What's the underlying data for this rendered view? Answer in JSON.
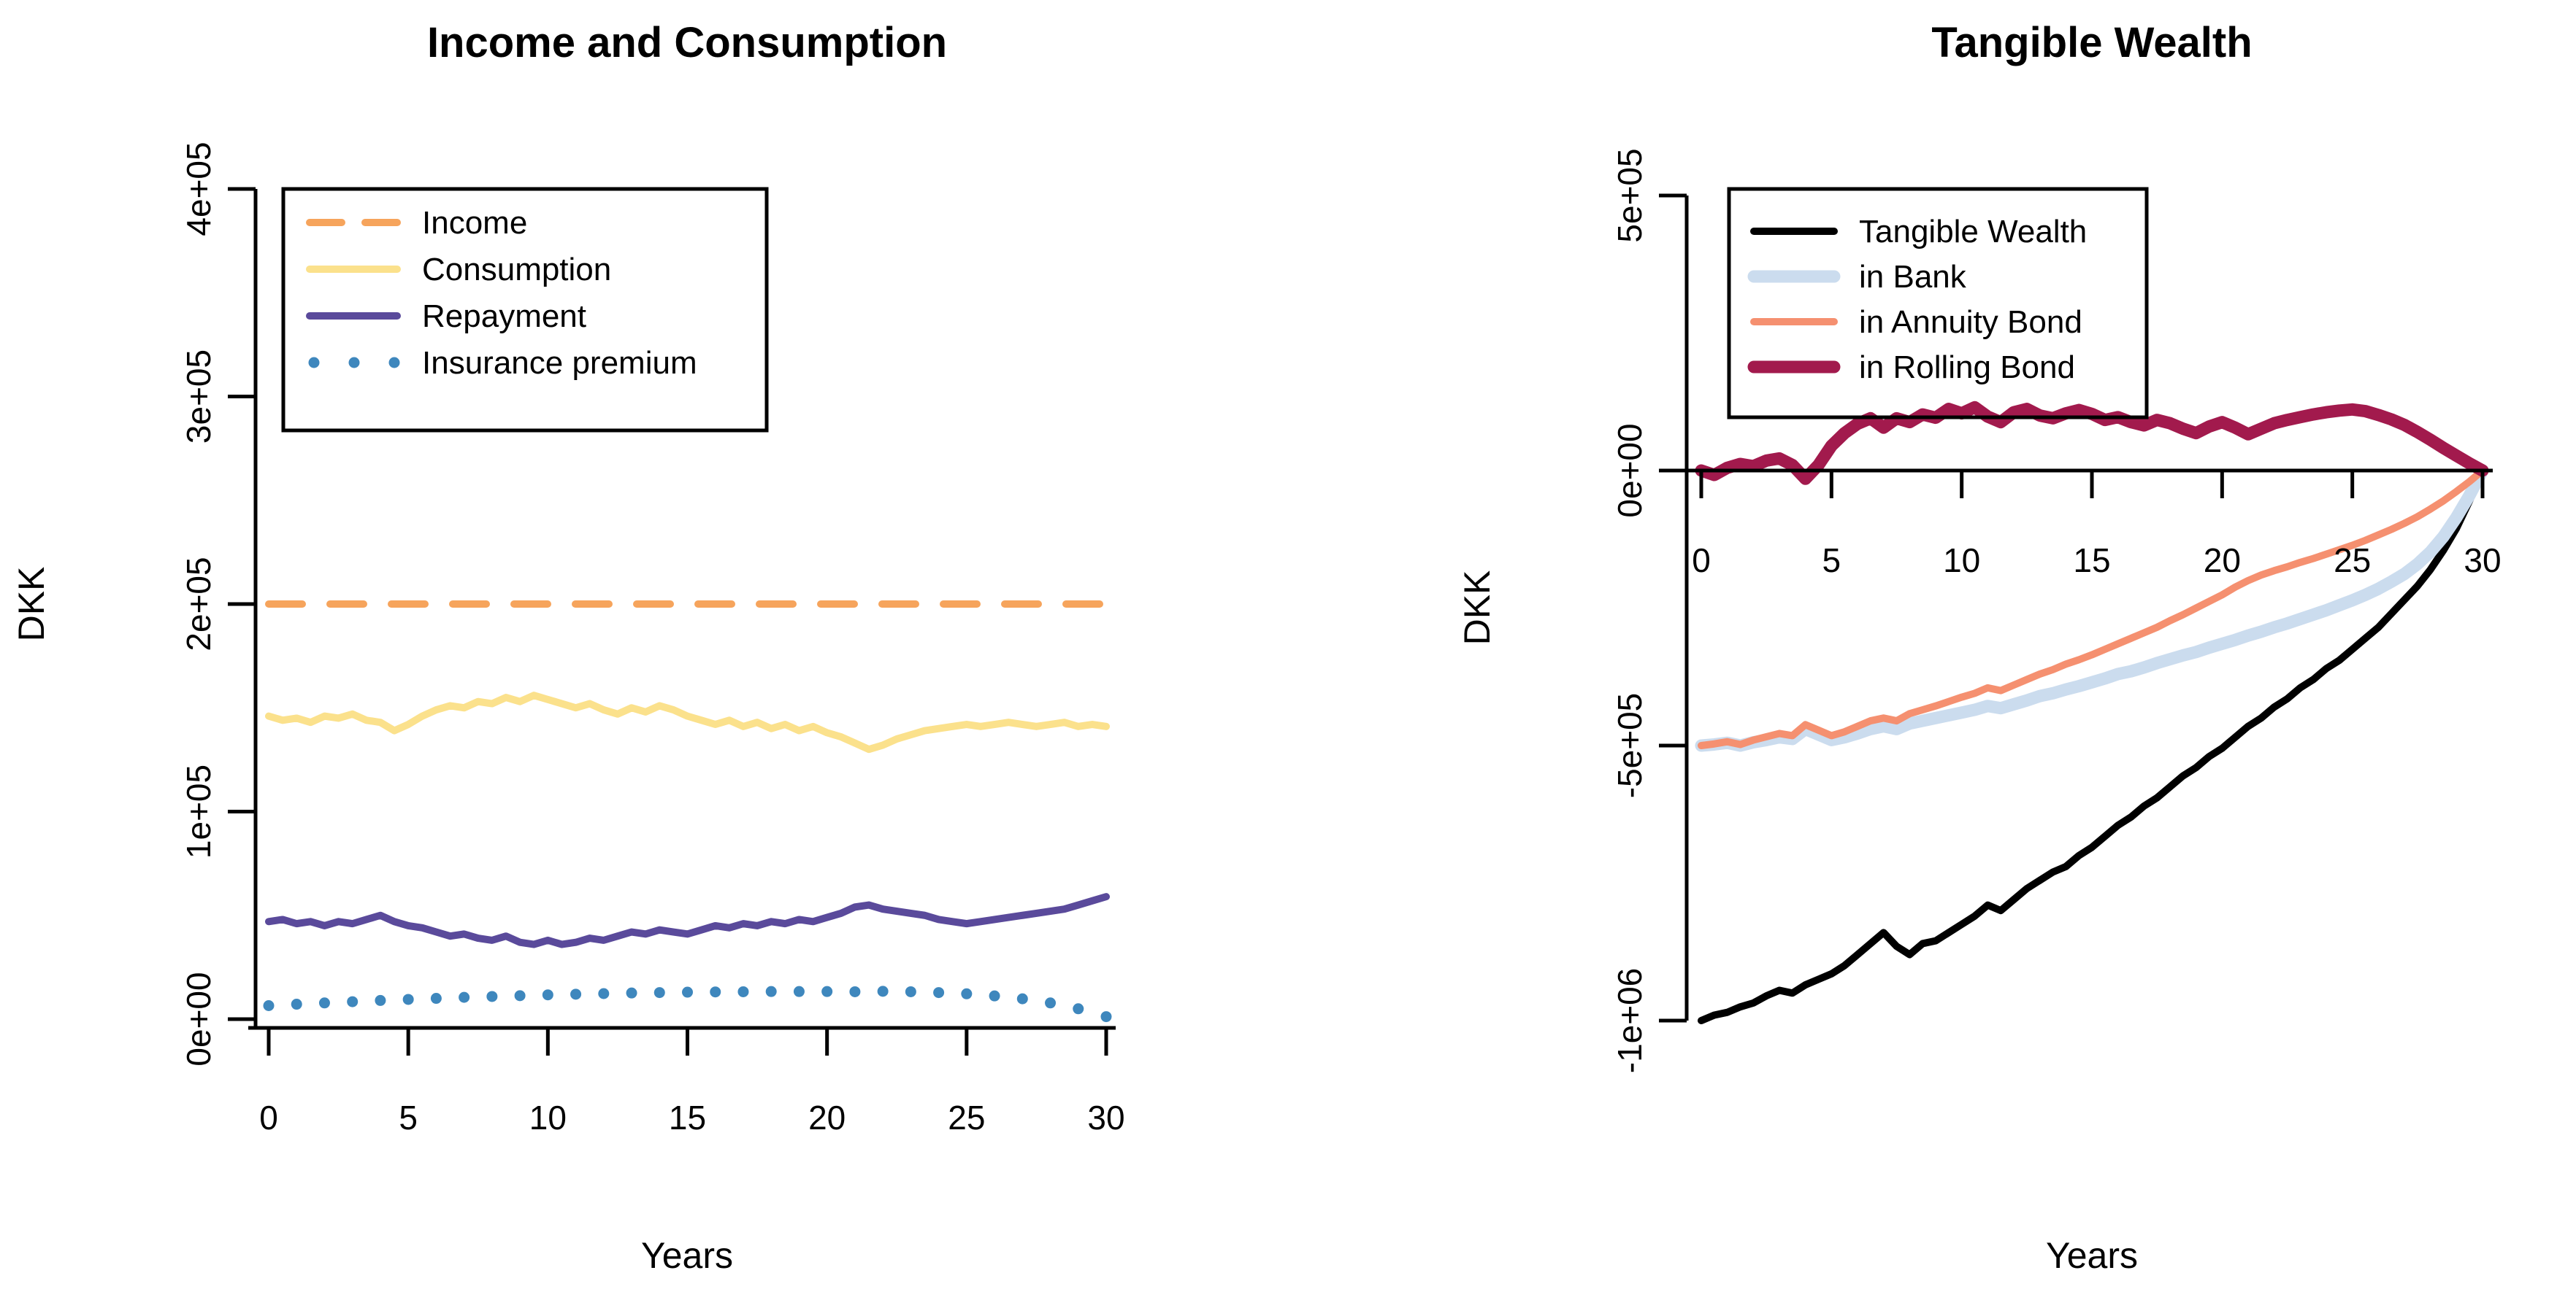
{
  "figure": {
    "background": "#FFFFFF",
    "text_color": "#000000"
  },
  "chart_data": [
    {
      "type": "line",
      "title": "Income and Consumption",
      "xlabel": "Years",
      "ylabel": "DKK",
      "xlim": [
        0,
        30
      ],
      "ylim": [
        0,
        400000
      ],
      "grid": false,
      "x_ticks": [
        0,
        5,
        10,
        15,
        20,
        25,
        30
      ],
      "y_ticks": {
        "values": [
          0,
          100000,
          200000,
          300000,
          400000
        ],
        "labels": [
          "0e+00",
          "1e+05",
          "2e+05",
          "3e+05",
          "4e+05"
        ]
      },
      "legend": {
        "position": "topleft",
        "entries": [
          "Income",
          "Consumption",
          "Repayment",
          "Insurance premium"
        ]
      },
      "series": [
        {
          "name": "Income",
          "color": "#F6A45C",
          "style": "dashed",
          "width": 10,
          "x_start": 0,
          "x_step": 30,
          "values": [
            200000,
            200000
          ]
        },
        {
          "name": "Consumption",
          "color": "#FBE18C",
          "style": "solid",
          "width": 10,
          "x_start": 0,
          "x_step": 0.5,
          "values": [
            146000,
            144000,
            145000,
            143000,
            146000,
            145000,
            147000,
            144000,
            143000,
            139000,
            142000,
            146000,
            149000,
            151000,
            150000,
            153000,
            152000,
            155000,
            153000,
            156000,
            154000,
            152000,
            150000,
            152000,
            149000,
            147000,
            150000,
            148000,
            151000,
            149000,
            146000,
            144000,
            142000,
            144000,
            141000,
            143000,
            140000,
            142000,
            139000,
            141000,
            138000,
            136000,
            133000,
            130000,
            132000,
            135000,
            137000,
            139000,
            140000,
            141000,
            142000,
            141000,
            142000,
            143000,
            142000,
            141000,
            142000,
            143000,
            141000,
            142000,
            141000
          ]
        },
        {
          "name": "Repayment",
          "color": "#5A4A9B",
          "style": "solid",
          "width": 10,
          "x_start": 0,
          "x_step": 0.5,
          "values": [
            47000,
            48000,
            46000,
            47000,
            45000,
            47000,
            46000,
            48000,
            50000,
            47000,
            45000,
            44000,
            42000,
            40000,
            41000,
            39000,
            38000,
            40000,
            37000,
            36000,
            38000,
            36000,
            37000,
            39000,
            38000,
            40000,
            42000,
            41000,
            43000,
            42000,
            41000,
            43000,
            45000,
            44000,
            46000,
            45000,
            47000,
            46000,
            48000,
            47000,
            49000,
            51000,
            54000,
            55000,
            53000,
            52000,
            51000,
            50000,
            48000,
            47000,
            46000,
            47000,
            48000,
            49000,
            50000,
            51000,
            52000,
            53000,
            55000,
            57000,
            59000
          ]
        },
        {
          "name": "Insurance premium",
          "color": "#3E87BD",
          "style": "dotted",
          "width": 10,
          "x_start": 0,
          "x_step": 1,
          "values": [
            6500,
            7200,
            7800,
            8400,
            9000,
            9500,
            10000,
            10500,
            10900,
            11300,
            11700,
            12000,
            12300,
            12600,
            12800,
            13000,
            13100,
            13200,
            13300,
            13300,
            13300,
            13200,
            13400,
            13200,
            12800,
            12200,
            11200,
            9800,
            7800,
            5000,
            1200
          ]
        }
      ]
    },
    {
      "type": "line",
      "title": "Tangible Wealth",
      "xlabel": "Years",
      "ylabel": "DKK",
      "xlim": [
        0,
        30
      ],
      "ylim": [
        -1000000,
        500000
      ],
      "grid": false,
      "x_axis_at_y": 0,
      "x_ticks": [
        0,
        5,
        10,
        15,
        20,
        25,
        30
      ],
      "y_ticks": {
        "values": [
          -1000000,
          -500000,
          0,
          500000
        ],
        "labels": [
          "-1e+06",
          "-5e+05",
          "0e+00",
          "5e+05"
        ]
      },
      "legend": {
        "position": "topleft",
        "entries": [
          "Tangible Wealth",
          "in Bank",
          "in Annuity Bond",
          "in Rolling Bond"
        ]
      },
      "series": [
        {
          "name": "Tangible Wealth",
          "color": "#000000",
          "style": "solid",
          "width": 10,
          "x_start": 0,
          "x_step": 0.5,
          "values": [
            -1000000,
            -990000,
            -985000,
            -975000,
            -968000,
            -955000,
            -945000,
            -950000,
            -935000,
            -925000,
            -915000,
            -900000,
            -880000,
            -860000,
            -840000,
            -865000,
            -880000,
            -860000,
            -855000,
            -840000,
            -825000,
            -810000,
            -790000,
            -800000,
            -780000,
            -760000,
            -745000,
            -730000,
            -720000,
            -700000,
            -685000,
            -665000,
            -645000,
            -630000,
            -610000,
            -595000,
            -575000,
            -555000,
            -540000,
            -520000,
            -505000,
            -485000,
            -465000,
            -450000,
            -430000,
            -415000,
            -395000,
            -380000,
            -360000,
            -345000,
            -325000,
            -305000,
            -285000,
            -260000,
            -235000,
            -210000,
            -180000,
            -145000,
            -105000,
            -55000,
            0
          ]
        },
        {
          "name": "in Bank",
          "color": "#CBDCEE",
          "style": "solid",
          "width": 17,
          "x_start": 0,
          "x_step": 0.5,
          "values": [
            -500000,
            -498000,
            -495000,
            -500000,
            -494000,
            -490000,
            -485000,
            -488000,
            -470000,
            -480000,
            -490000,
            -485000,
            -478000,
            -470000,
            -465000,
            -470000,
            -460000,
            -455000,
            -450000,
            -445000,
            -440000,
            -435000,
            -428000,
            -432000,
            -425000,
            -418000,
            -410000,
            -405000,
            -398000,
            -392000,
            -385000,
            -378000,
            -370000,
            -365000,
            -358000,
            -350000,
            -343000,
            -336000,
            -330000,
            -322000,
            -315000,
            -308000,
            -300000,
            -293000,
            -285000,
            -278000,
            -270000,
            -262000,
            -254000,
            -245000,
            -236000,
            -226000,
            -215000,
            -202000,
            -188000,
            -170000,
            -148000,
            -120000,
            -85000,
            -45000,
            0
          ]
        },
        {
          "name": "in Annuity Bond",
          "color": "#F59070",
          "style": "solid",
          "width": 10,
          "x_start": 0,
          "x_step": 0.5,
          "values": [
            -500000,
            -497000,
            -493000,
            -498000,
            -490000,
            -484000,
            -478000,
            -482000,
            -462000,
            -472000,
            -482000,
            -475000,
            -465000,
            -455000,
            -450000,
            -455000,
            -442000,
            -435000,
            -428000,
            -420000,
            -412000,
            -405000,
            -395000,
            -400000,
            -390000,
            -380000,
            -370000,
            -362000,
            -352000,
            -344000,
            -335000,
            -325000,
            -315000,
            -305000,
            -295000,
            -285000,
            -273000,
            -262000,
            -250000,
            -238000,
            -226000,
            -212000,
            -200000,
            -190000,
            -182000,
            -175000,
            -167000,
            -160000,
            -152000,
            -144000,
            -136000,
            -127000,
            -117000,
            -107000,
            -96000,
            -84000,
            -70000,
            -55000,
            -38000,
            -20000,
            0
          ]
        },
        {
          "name": "in Rolling Bond",
          "color": "#A21A4D",
          "style": "solid",
          "width": 17,
          "x_start": 0,
          "x_step": 0.5,
          "values": [
            0,
            -8000,
            5000,
            12000,
            8000,
            18000,
            22000,
            10000,
            -15000,
            10000,
            45000,
            68000,
            85000,
            95000,
            78000,
            95000,
            88000,
            102000,
            96000,
            112000,
            104000,
            115000,
            98000,
            88000,
            106000,
            112000,
            100000,
            95000,
            104000,
            110000,
            103000,
            92000,
            97000,
            88000,
            82000,
            92000,
            86000,
            76000,
            68000,
            80000,
            88000,
            78000,
            66000,
            76000,
            86000,
            92000,
            97000,
            102000,
            106000,
            109000,
            111000,
            108000,
            101000,
            93000,
            83000,
            70000,
            56000,
            41000,
            27000,
            13000,
            0
          ]
        }
      ]
    }
  ]
}
